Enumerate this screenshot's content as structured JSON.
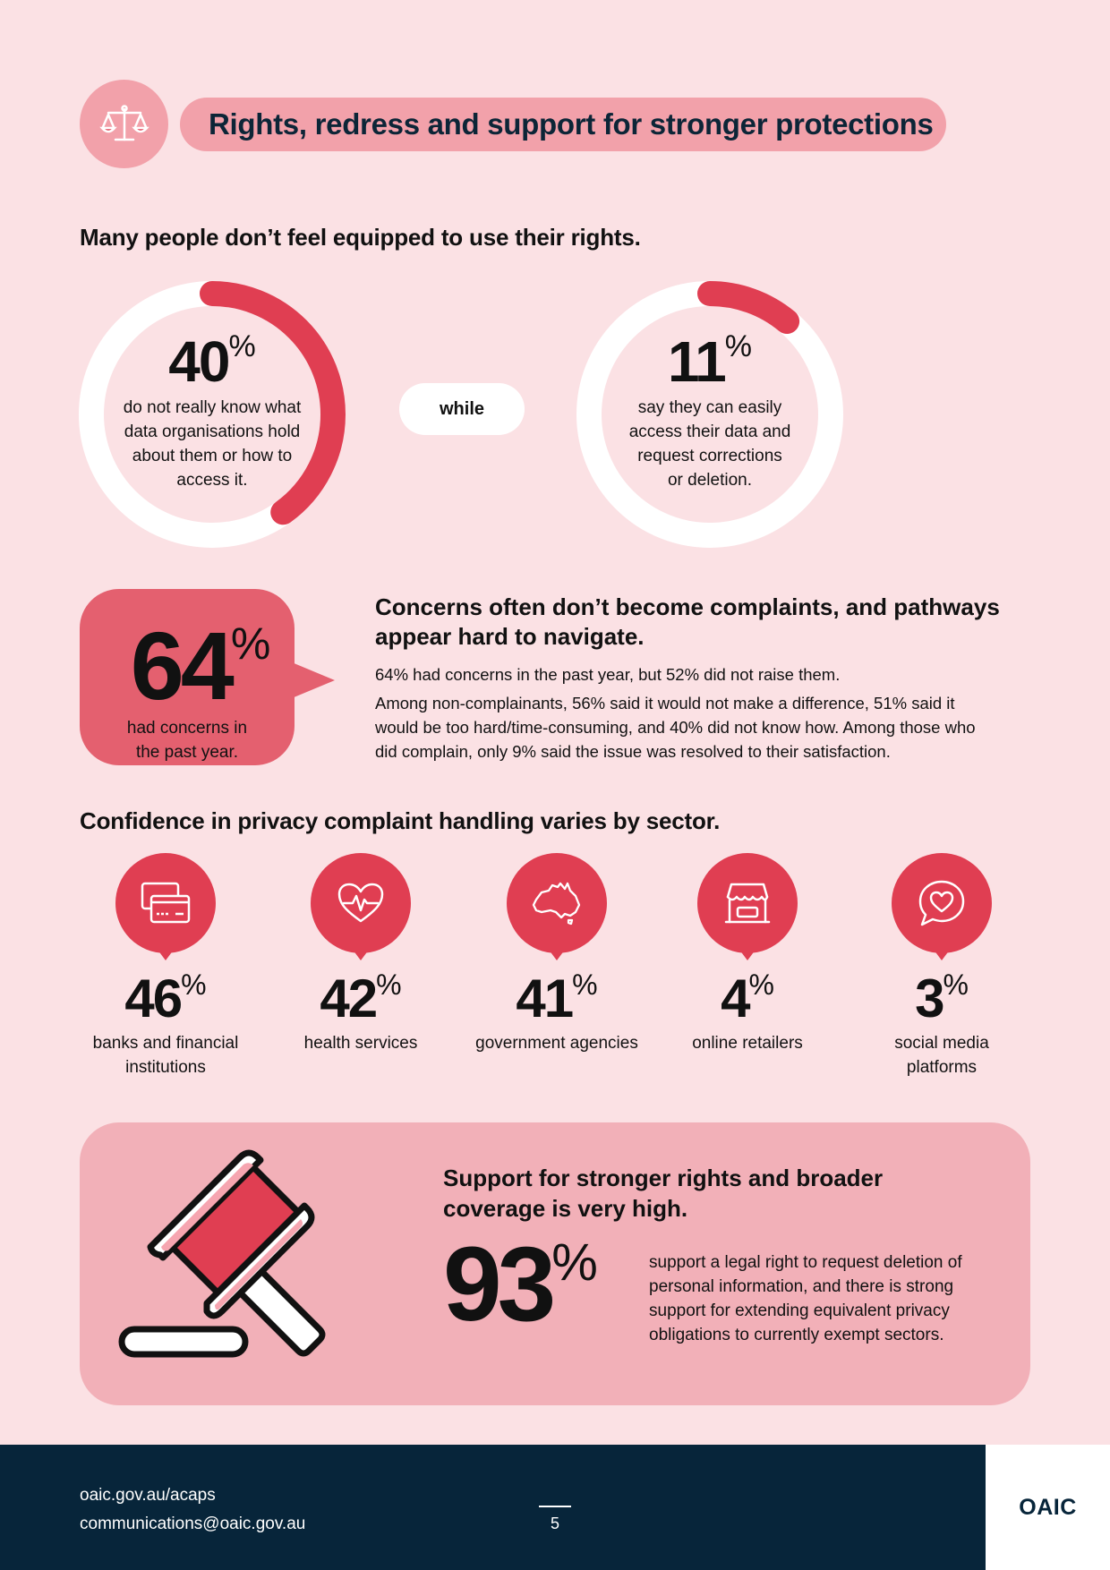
{
  "header": {
    "title": "Rights, redress and support for stronger protections",
    "icon": "scales-icon"
  },
  "rights_section": {
    "heading": "Many people don’t feel equipped to use their rights.",
    "left_stat": {
      "value": "40",
      "unit": "%",
      "desc_lines": [
        "do not really know what",
        "data organisations hold",
        "about them or how to",
        "access it."
      ],
      "fraction": 0.4
    },
    "connector": "while",
    "right_stat": {
      "value": "11",
      "unit": "%",
      "desc_lines": [
        "say they can easily",
        "access their data and",
        "request corrections",
        "or deletion."
      ],
      "fraction": 0.11
    }
  },
  "complaints_section": {
    "bubble": {
      "value": "64",
      "unit": "%",
      "desc_lines": [
        "had concerns in",
        "the past year."
      ]
    },
    "title_lines": [
      "Concerns often don’t become complaints, and pathways",
      "appear hard to navigate."
    ],
    "para1": "64% had concerns in the past year, but 52% did not raise them.",
    "para2_lines": [
      "Among non-complainants, 56% said it would not make a difference, 51% said it",
      "would be too hard/time-consuming, and 40% did not know how. Among those who",
      "did complain, only 9% said the issue was resolved to their satisfaction."
    ]
  },
  "sectors_section": {
    "heading": "Confidence in privacy complaint handling varies by sector.",
    "items": [
      {
        "value": "46",
        "unit": "%",
        "label_lines": [
          "banks and financial",
          "institutions"
        ],
        "icon": "credit-card-icon"
      },
      {
        "value": "42",
        "unit": "%",
        "label_lines": [
          "health services",
          ""
        ],
        "icon": "heart-pulse-icon"
      },
      {
        "value": "41",
        "unit": "%",
        "label_lines": [
          "government agencies",
          ""
        ],
        "icon": "australia-map-icon"
      },
      {
        "value": "4",
        "unit": "%",
        "label_lines": [
          "online retailers",
          ""
        ],
        "icon": "storefront-icon"
      },
      {
        "value": "3",
        "unit": "%",
        "label_lines": [
          "social media",
          "platforms"
        ],
        "icon": "heart-chat-icon"
      }
    ]
  },
  "support_section": {
    "title_lines": [
      "Support for stronger rights and broader",
      "coverage is very high."
    ],
    "value": "93",
    "unit": "%",
    "desc_lines": [
      "support a legal right to request deletion of",
      "personal information, and there is strong",
      "support for extending equivalent privacy",
      "obligations to currently exempt sectors."
    ],
    "icon": "gavel-icon"
  },
  "footer": {
    "link1": "oaic.gov.au/acaps",
    "link2": "communications@oaic.gov.au",
    "page_number": "5",
    "logo_text": "OAIC"
  },
  "colors": {
    "background": "#fbe1e4",
    "accent_red": "#e03e52",
    "pink": "#f2a1aa",
    "navy": "#07253a"
  }
}
